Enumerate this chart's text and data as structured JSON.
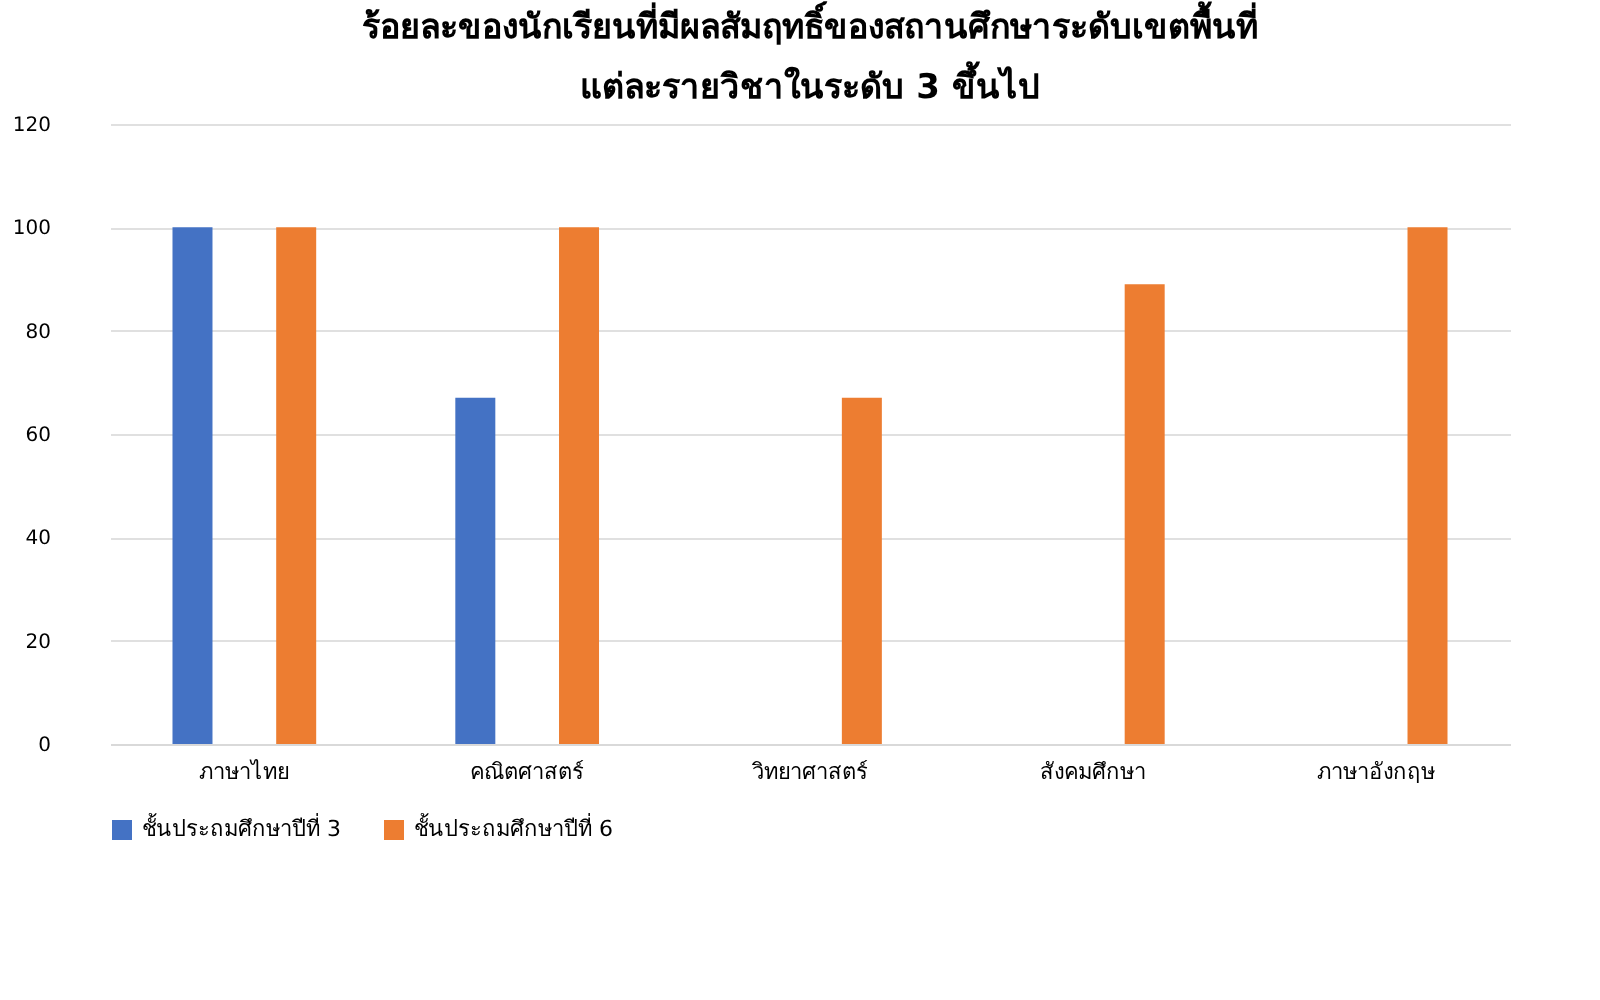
{
  "chart_data": {
    "type": "bar",
    "title": "ร้อยละของนักเรียนที่มีผลสัมฤทธิ์ของสถานศึกษาระดับเขตพื้นที่\nแต่ละรายวิชาในระดับ   3   ขึ้นไป",
    "categories": [
      "ภาษาไทย",
      "คณิตศาสตร์",
      "วิทยาศาสตร์",
      "สังคมศึกษา",
      "ภาษาอังกฤษ"
    ],
    "series": [
      {
        "name": "ชั้นประถมศึกษาปีที่ 3",
        "color": "#4472c4",
        "values": [
          100,
          67,
          0,
          0,
          0
        ]
      },
      {
        "name": "ชั้นประถมศึกษาปีที่ 6",
        "color": "#ed7d31",
        "values": [
          100,
          100,
          67,
          89,
          100
        ]
      }
    ],
    "ylim": [
      0,
      120
    ],
    "yticks": [
      0,
      20,
      40,
      60,
      80,
      100,
      120
    ],
    "grid": "y",
    "legend": "bottom"
  }
}
